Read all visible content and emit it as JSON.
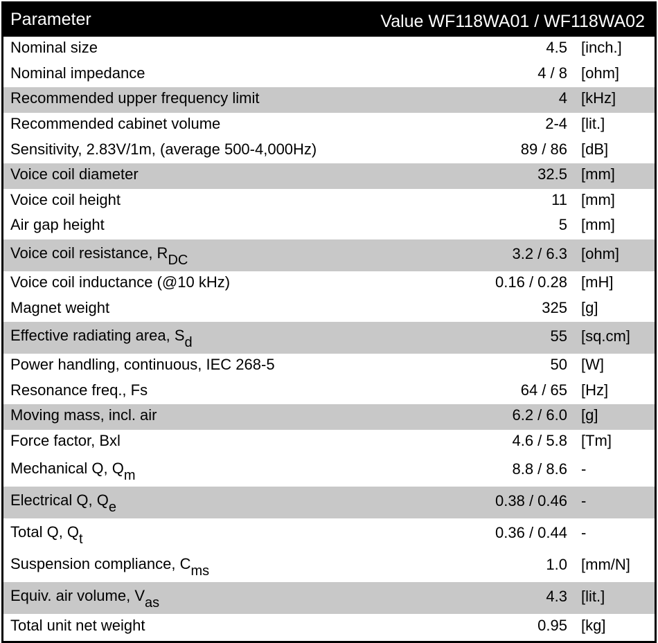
{
  "table": {
    "header": [
      "Parameter",
      "Value WF118WA01 / WF118WA02"
    ],
    "rows": [
      {
        "parameter": "Nominal size",
        "value": "4.5",
        "unit": "[inch.]",
        "shaded": false
      },
      {
        "parameter": "Nominal impedance",
        "value": "4 / 8",
        "unit": "[ohm]",
        "shaded": false
      },
      {
        "parameter": "Recommended upper frequency limit",
        "value": "4",
        "unit": "[kHz]",
        "shaded": true
      },
      {
        "parameter": "Recommended cabinet volume",
        "value": "2-4",
        "unit": "[lit.]",
        "shaded": false
      },
      {
        "parameter": "Sensitivity, 2.83V/1m, (average 500-4,000Hz)",
        "value": "89 / 86",
        "unit": "[dB]",
        "shaded": false
      },
      {
        "parameter": "Voice coil diameter",
        "value": "32.5",
        "unit": "[mm]",
        "shaded": true
      },
      {
        "parameter": "Voice coil height",
        "value": "11",
        "unit": "[mm]",
        "shaded": false
      },
      {
        "parameter": "Air gap height",
        "value": "5",
        "unit": "[mm]",
        "shaded": false
      },
      {
        "parameter": {
          "text": "Voice coil resistance, R",
          "sub": "DC"
        },
        "value": "3.2 / 6.3",
        "unit": "[ohm]",
        "shaded": true
      },
      {
        "parameter": "Voice coil inductance (@10 kHz)",
        "value": "0.16 / 0.28",
        "unit": "[mH]",
        "shaded": false
      },
      {
        "parameter": "Magnet weight",
        "value": "325",
        "unit": "[g]",
        "shaded": false
      },
      {
        "parameter": {
          "text": "Effective radiating area, S",
          "sub": "d"
        },
        "value": "55",
        "unit": "[sq.cm]",
        "shaded": true
      },
      {
        "parameter": "Power handling, continuous, IEC 268-5",
        "value": "50",
        "unit": "[W]",
        "shaded": false
      },
      {
        "parameter": "Resonance freq., Fs",
        "value": "64 / 65",
        "unit": "[Hz]",
        "shaded": false
      },
      {
        "parameter": "Moving mass, incl. air",
        "value": "6.2 / 6.0",
        "unit": "[g]",
        "shaded": true
      },
      {
        "parameter": "Force factor, Bxl",
        "value": "4.6 / 5.8",
        "unit": "[Tm]",
        "shaded": false
      },
      {
        "parameter": {
          "text": "Mechanical Q, Q",
          "sub": "m"
        },
        "value": "8.8 / 8.6",
        "unit": "-",
        "shaded": false
      },
      {
        "parameter": {
          "text": "Electrical Q, Q",
          "sub": "e"
        },
        "value": "0.38 / 0.46",
        "unit": "-",
        "shaded": true
      },
      {
        "parameter": {
          "text": "Total Q, Q",
          "sub": "t"
        },
        "value": "0.36 / 0.44",
        "unit": "-",
        "shaded": false
      },
      {
        "parameter": {
          "text": "Suspension compliance, C",
          "sub": "ms"
        },
        "value": "1.0",
        "unit": "[mm/N]",
        "shaded": false
      },
      {
        "parameter": {
          "text": "Equiv. air volume, V",
          "sub": "as"
        },
        "value": "4.3",
        "unit": "[lit.]",
        "shaded": true
      },
      {
        "parameter": "Total unit net weight",
        "value": "0.95",
        "unit": "[kg]",
        "shaded": false
      }
    ]
  }
}
